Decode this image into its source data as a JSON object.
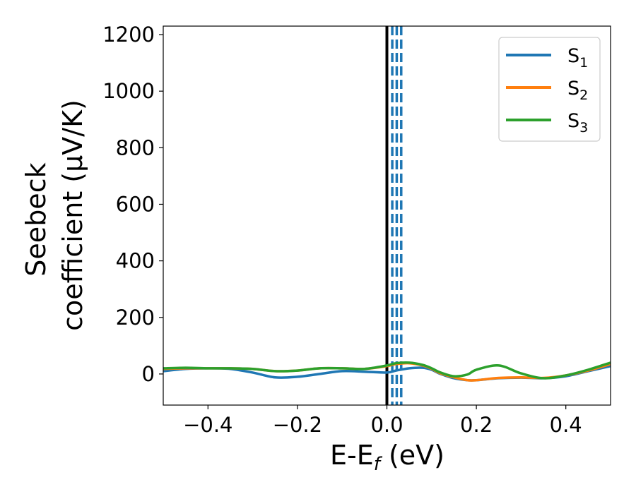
{
  "chart_data": {
    "type": "line",
    "xlabel": "E-E",
    "xlabel_sub": "f",
    "xlabel_unit": " (eV)",
    "ylabel_line1": "Seebeck",
    "ylabel_line2": "coefficient  (μV/K)",
    "xlim": [
      -0.5,
      0.5
    ],
    "ylim": [
      -110,
      1230
    ],
    "x_ticks": [
      -0.4,
      -0.2,
      0.0,
      0.2,
      0.4
    ],
    "x_tick_labels": [
      "−0.4",
      "−0.2",
      "0.0",
      "0.2",
      "0.4"
    ],
    "y_ticks": [
      0,
      200,
      400,
      600,
      800,
      1000,
      1200
    ],
    "y_tick_labels": [
      "0",
      "200",
      "400",
      "600",
      "800",
      "1000",
      "1200"
    ],
    "legend_position": "top-right",
    "fermi_line_x": 0.0,
    "dashed_lines_x": [
      0.012,
      0.022,
      0.032
    ],
    "colors": {
      "S1": "#1f77b4",
      "S2": "#ff7f0e",
      "S3": "#2ca02c",
      "fermi": "#000000",
      "dashed": "#1f77b4"
    },
    "series": [
      {
        "name": "S",
        "sub": "1",
        "color": "#1f77b4",
        "x": [
          -0.5,
          -0.45,
          -0.4,
          -0.35,
          -0.3,
          -0.25,
          -0.2,
          -0.15,
          -0.1,
          -0.05,
          0.0,
          0.02,
          0.05,
          0.08,
          0.1,
          0.12,
          0.15,
          0.18,
          0.2,
          0.25,
          0.3,
          0.35,
          0.4,
          0.45,
          0.5
        ],
        "y": [
          10,
          18,
          20,
          18,
          5,
          -12,
          -10,
          0,
          10,
          8,
          5,
          12,
          20,
          22,
          15,
          0,
          -15,
          -22,
          -22,
          -15,
          -13,
          -15,
          -8,
          10,
          28
        ]
      },
      {
        "name": "S",
        "sub": "2",
        "color": "#ff7f0e",
        "x": [
          -0.5,
          -0.45,
          -0.4,
          -0.35,
          -0.3,
          -0.25,
          -0.2,
          -0.15,
          -0.1,
          -0.05,
          0.0,
          0.02,
          0.05,
          0.08,
          0.1,
          0.12,
          0.15,
          0.18,
          0.2,
          0.25,
          0.3,
          0.35,
          0.4,
          0.45,
          0.5
        ],
        "y": [
          18,
          20,
          20,
          20,
          18,
          10,
          12,
          20,
          20,
          18,
          28,
          35,
          38,
          30,
          18,
          2,
          -12,
          -22,
          -22,
          -14,
          -12,
          -14,
          -5,
          12,
          35
        ]
      },
      {
        "name": "S",
        "sub": "3",
        "color": "#2ca02c",
        "x": [
          -0.5,
          -0.45,
          -0.4,
          -0.35,
          -0.3,
          -0.25,
          -0.2,
          -0.15,
          -0.1,
          -0.05,
          0.0,
          0.02,
          0.05,
          0.08,
          0.1,
          0.12,
          0.15,
          0.18,
          0.2,
          0.25,
          0.3,
          0.35,
          0.4,
          0.45,
          0.5
        ],
        "y": [
          20,
          22,
          20,
          20,
          18,
          10,
          12,
          20,
          20,
          18,
          30,
          38,
          40,
          32,
          20,
          5,
          -8,
          -2,
          15,
          30,
          2,
          -15,
          -5,
          15,
          40
        ]
      }
    ]
  }
}
